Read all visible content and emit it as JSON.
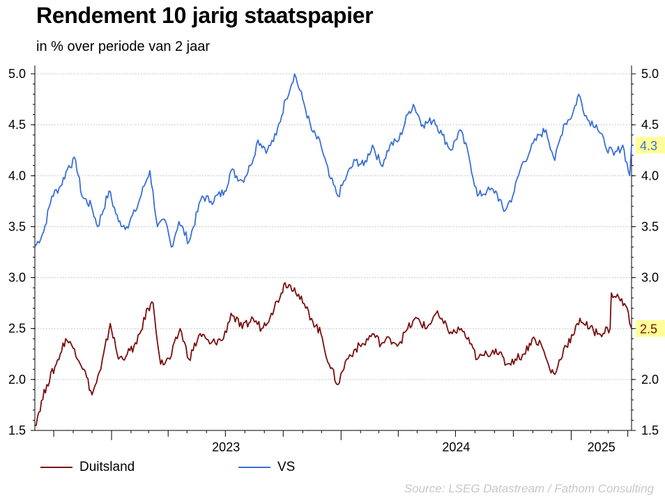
{
  "title": "Rendement 10 jarig staatspapier",
  "subtitle": "in % over periode van 2 jaar",
  "source": "Source: LSEG Datastream / Fathom Consulting",
  "legend": {
    "duitsland": "Duitsland",
    "vs": "VS"
  },
  "chart_data": {
    "type": "line",
    "title": "Rendement 10 jarig staatspapier",
    "subtitle": "in % over periode van 2 jaar",
    "xlabel": "",
    "ylabel": "",
    "ylim": [
      1.5,
      5.0
    ],
    "yticks": [
      "1.5",
      "2.0",
      "2.5",
      "3.0",
      "3.5",
      "4.0",
      "4.5",
      "5.0"
    ],
    "xrange": [
      "2022-09-01",
      "2025-04-07"
    ],
    "xtick_labels": [
      "2023",
      "2024",
      "2025"
    ],
    "grid": "horizontal dotted",
    "legend_position": "bottom-left",
    "end_labels": [
      {
        "series": "VS",
        "value": "4.3",
        "color": "#3a6fd8",
        "bg": "#ffff99"
      },
      {
        "series": "Duitsland",
        "value": "2.5",
        "color": "#7a0d0d",
        "bg": "#ffff99"
      }
    ],
    "series": [
      {
        "name": "VS",
        "color": "#3a6fd8",
        "points": [
          [
            "2022-09-01",
            3.3
          ],
          [
            "2022-09-15",
            3.45
          ],
          [
            "2022-09-28",
            3.8
          ],
          [
            "2022-10-12",
            3.9
          ],
          [
            "2022-10-25",
            4.1
          ],
          [
            "2022-11-05",
            4.15
          ],
          [
            "2022-11-15",
            3.8
          ],
          [
            "2022-11-30",
            3.7
          ],
          [
            "2022-12-10",
            3.5
          ],
          [
            "2022-12-28",
            3.85
          ],
          [
            "2023-01-12",
            3.55
          ],
          [
            "2023-01-25",
            3.5
          ],
          [
            "2023-02-08",
            3.65
          ],
          [
            "2023-02-22",
            3.9
          ],
          [
            "2023-03-03",
            4.05
          ],
          [
            "2023-03-15",
            3.5
          ],
          [
            "2023-03-28",
            3.55
          ],
          [
            "2023-04-06",
            3.3
          ],
          [
            "2023-04-18",
            3.55
          ],
          [
            "2023-05-04",
            3.35
          ],
          [
            "2023-05-25",
            3.8
          ],
          [
            "2023-06-08",
            3.75
          ],
          [
            "2023-06-30",
            3.85
          ],
          [
            "2023-07-10",
            4.05
          ],
          [
            "2023-07-28",
            3.95
          ],
          [
            "2023-08-10",
            4.1
          ],
          [
            "2023-08-22",
            4.35
          ],
          [
            "2023-09-06",
            4.25
          ],
          [
            "2023-09-20",
            4.4
          ],
          [
            "2023-10-05",
            4.75
          ],
          [
            "2023-10-19",
            5.0
          ],
          [
            "2023-11-01",
            4.75
          ],
          [
            "2023-11-15",
            4.45
          ],
          [
            "2023-11-30",
            4.3
          ],
          [
            "2023-12-13",
            4.0
          ],
          [
            "2023-12-27",
            3.8
          ],
          [
            "2024-01-10",
            4.0
          ],
          [
            "2024-01-24",
            4.15
          ],
          [
            "2024-02-06",
            4.1
          ],
          [
            "2024-02-20",
            4.3
          ],
          [
            "2024-03-05",
            4.1
          ],
          [
            "2024-03-19",
            4.3
          ],
          [
            "2024-04-02",
            4.35
          ],
          [
            "2024-04-16",
            4.6
          ],
          [
            "2024-04-25",
            4.7
          ],
          [
            "2024-05-10",
            4.5
          ],
          [
            "2024-05-28",
            4.55
          ],
          [
            "2024-06-10",
            4.4
          ],
          [
            "2024-06-24",
            4.25
          ],
          [
            "2024-07-08",
            4.45
          ],
          [
            "2024-07-22",
            4.2
          ],
          [
            "2024-08-05",
            3.8
          ],
          [
            "2024-08-20",
            3.85
          ],
          [
            "2024-09-03",
            3.85
          ],
          [
            "2024-09-16",
            3.65
          ],
          [
            "2024-09-30",
            3.8
          ],
          [
            "2024-10-14",
            4.1
          ],
          [
            "2024-10-28",
            4.25
          ],
          [
            "2024-11-11",
            4.4
          ],
          [
            "2024-11-22",
            4.45
          ],
          [
            "2024-12-06",
            4.15
          ],
          [
            "2024-12-20",
            4.5
          ],
          [
            "2025-01-03",
            4.6
          ],
          [
            "2025-01-13",
            4.8
          ],
          [
            "2025-01-27",
            4.55
          ],
          [
            "2025-02-10",
            4.5
          ],
          [
            "2025-02-24",
            4.3
          ],
          [
            "2025-03-10",
            4.2
          ],
          [
            "2025-03-24",
            4.3
          ],
          [
            "2025-04-04",
            4.0
          ],
          [
            "2025-04-07",
            4.3
          ]
        ]
      },
      {
        "name": "Duitsland",
        "color": "#7a0d0d",
        "points": [
          [
            "2022-09-01",
            1.55
          ],
          [
            "2022-09-20",
            1.95
          ],
          [
            "2022-10-05",
            2.15
          ],
          [
            "2022-10-20",
            2.4
          ],
          [
            "2022-11-03",
            2.3
          ],
          [
            "2022-11-18",
            2.1
          ],
          [
            "2022-12-01",
            1.85
          ],
          [
            "2022-12-15",
            2.1
          ],
          [
            "2022-12-30",
            2.55
          ],
          [
            "2023-01-12",
            2.2
          ],
          [
            "2023-01-26",
            2.25
          ],
          [
            "2023-02-10",
            2.35
          ],
          [
            "2023-02-28",
            2.7
          ],
          [
            "2023-03-08",
            2.75
          ],
          [
            "2023-03-20",
            2.15
          ],
          [
            "2023-04-04",
            2.2
          ],
          [
            "2023-04-20",
            2.5
          ],
          [
            "2023-05-04",
            2.2
          ],
          [
            "2023-05-22",
            2.45
          ],
          [
            "2023-06-06",
            2.35
          ],
          [
            "2023-06-28",
            2.4
          ],
          [
            "2023-07-10",
            2.65
          ],
          [
            "2023-07-28",
            2.5
          ],
          [
            "2023-08-14",
            2.6
          ],
          [
            "2023-08-28",
            2.5
          ],
          [
            "2023-09-12",
            2.65
          ],
          [
            "2023-09-28",
            2.85
          ],
          [
            "2023-10-04",
            2.95
          ],
          [
            "2023-10-19",
            2.9
          ],
          [
            "2023-11-01",
            2.75
          ],
          [
            "2023-11-15",
            2.6
          ],
          [
            "2023-11-30",
            2.45
          ],
          [
            "2023-12-13",
            2.15
          ],
          [
            "2023-12-27",
            1.95
          ],
          [
            "2024-01-10",
            2.2
          ],
          [
            "2024-01-24",
            2.3
          ],
          [
            "2024-02-06",
            2.35
          ],
          [
            "2024-02-20",
            2.45
          ],
          [
            "2024-03-05",
            2.35
          ],
          [
            "2024-03-19",
            2.4
          ],
          [
            "2024-04-02",
            2.35
          ],
          [
            "2024-04-16",
            2.5
          ],
          [
            "2024-05-01",
            2.6
          ],
          [
            "2024-05-16",
            2.5
          ],
          [
            "2024-05-31",
            2.65
          ],
          [
            "2024-06-12",
            2.55
          ],
          [
            "2024-06-26",
            2.45
          ],
          [
            "2024-07-10",
            2.5
          ],
          [
            "2024-07-24",
            2.35
          ],
          [
            "2024-08-05",
            2.2
          ],
          [
            "2024-08-20",
            2.25
          ],
          [
            "2024-09-03",
            2.3
          ],
          [
            "2024-09-20",
            2.15
          ],
          [
            "2024-10-04",
            2.2
          ],
          [
            "2024-10-18",
            2.25
          ],
          [
            "2024-10-31",
            2.4
          ],
          [
            "2024-11-14",
            2.35
          ],
          [
            "2024-11-28",
            2.1
          ],
          [
            "2024-12-06",
            2.05
          ],
          [
            "2024-12-20",
            2.3
          ],
          [
            "2025-01-06",
            2.45
          ],
          [
            "2025-01-15",
            2.6
          ],
          [
            "2025-01-30",
            2.5
          ],
          [
            "2025-02-14",
            2.45
          ],
          [
            "2025-03-04",
            2.5
          ],
          [
            "2025-03-06",
            2.85
          ],
          [
            "2025-03-18",
            2.8
          ],
          [
            "2025-03-31",
            2.7
          ],
          [
            "2025-04-04",
            2.55
          ],
          [
            "2025-04-07",
            2.5
          ]
        ]
      }
    ]
  }
}
